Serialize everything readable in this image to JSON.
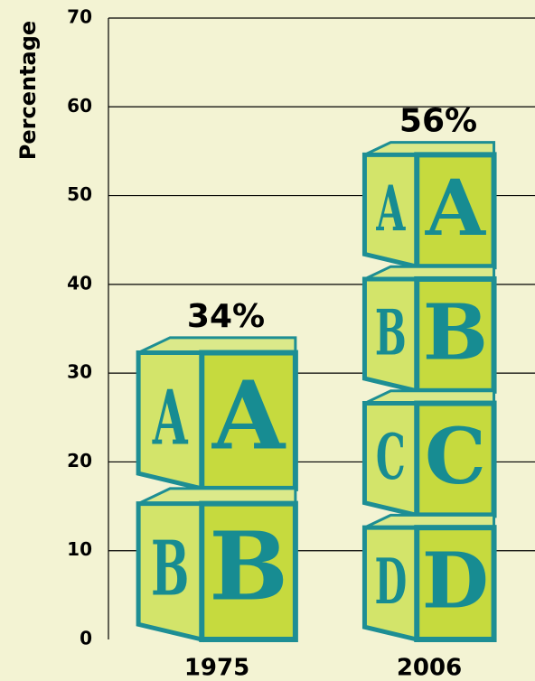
{
  "chart_data": {
    "type": "bar",
    "ylabel": "Percentage",
    "categories": [
      "1975",
      "2006"
    ],
    "values": [
      34,
      56
    ],
    "value_labels": [
      "34%",
      "56%"
    ],
    "block_letters": [
      "A",
      "B",
      "C",
      "D"
    ],
    "ylim": [
      0,
      70
    ],
    "yticks": [
      0,
      10,
      20,
      30,
      40,
      50,
      60,
      70
    ],
    "grid": true,
    "color": "#c6da3e"
  }
}
